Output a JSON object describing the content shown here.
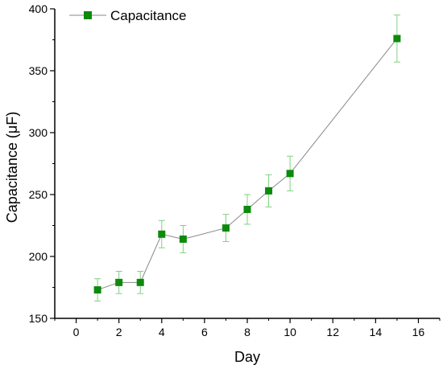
{
  "chart_data": {
    "type": "scatter",
    "title": "",
    "xlabel": "Day",
    "ylabel": "Capacitance (μF)",
    "xlim": [
      -1,
      17
    ],
    "ylim": [
      150,
      400
    ],
    "xticks": [
      0,
      2,
      4,
      6,
      8,
      10,
      12,
      14,
      16
    ],
    "yticks": [
      150,
      200,
      250,
      300,
      350,
      400
    ],
    "xtick_labels": [
      "0",
      "2",
      "4",
      "6",
      "8",
      "10",
      "12",
      "14",
      "16"
    ],
    "ytick_labels": [
      "150",
      "200",
      "250",
      "300",
      "350",
      "400"
    ],
    "grid": false,
    "legend_position": "top-left",
    "series": [
      {
        "name": "Capacitance",
        "marker": "square",
        "connected_by_line": true,
        "color": "#0b8a0b",
        "line_color": "#888888",
        "error_bar_color": "#7fd17f",
        "x": [
          1,
          2,
          3,
          4,
          5,
          7,
          8,
          9,
          10,
          15
        ],
        "y": [
          173,
          179,
          179,
          218,
          214,
          223,
          238,
          253,
          267,
          376
        ],
        "error": [
          9,
          9,
          9,
          11,
          11,
          11,
          12,
          13,
          14,
          19
        ]
      }
    ]
  }
}
